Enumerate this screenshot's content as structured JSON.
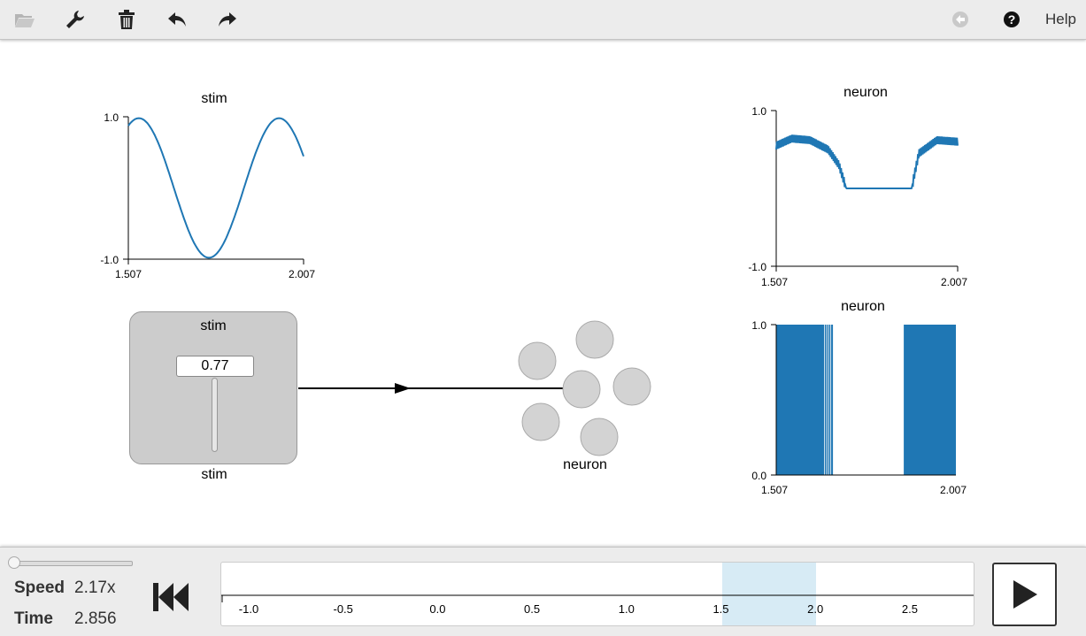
{
  "toolbar": {
    "icons": [
      "folder-open-icon",
      "wrench-icon",
      "trash-icon",
      "undo-icon",
      "redo-icon",
      "back-circle-icon",
      "help-circle-icon"
    ],
    "help_label": "Help"
  },
  "plots": {
    "stim": {
      "title": "stim",
      "y_max": "1.0",
      "y_min": "-1.0",
      "x_start": "1.507",
      "x_end": "2.007"
    },
    "neuron_value": {
      "title": "neuron",
      "y_max": "1.0",
      "y_min": "-1.0",
      "x_start": "1.507",
      "x_end": "2.007"
    },
    "neuron_raster": {
      "title": "neuron",
      "y_max": "1.0",
      "y_min": "0.0",
      "x_start": "1.507",
      "x_end": "2.007"
    }
  },
  "slider": {
    "title": "stim",
    "value": "0.77",
    "caption": "stim"
  },
  "ensemble": {
    "caption": "neuron"
  },
  "controls": {
    "speed_label": "Speed",
    "speed_value": "2.17x",
    "time_label": "Time",
    "time_value": "2.856",
    "timeline_ticks": [
      "-1.0",
      "-0.5",
      "0.0",
      "0.5",
      "1.0",
      "1.5",
      "2.0",
      "2.5"
    ]
  },
  "chart_data": [
    {
      "type": "line",
      "title": "stim",
      "x_range": [
        1.507,
        2.007
      ],
      "ylim": [
        -1.0,
        1.0
      ],
      "series": [
        {
          "values_note_free": true,
          "x": [
            1.507,
            1.55,
            1.6,
            1.65,
            1.7,
            1.75,
            1.8,
            1.85,
            1.9,
            1.95,
            2.007
          ],
          "y": [
            0.6,
            0.98,
            0.9,
            0.35,
            -0.4,
            -0.95,
            -0.8,
            -0.1,
            0.7,
            0.98,
            0.85
          ]
        }
      ]
    },
    {
      "type": "line",
      "title": "neuron",
      "x_range": [
        1.507,
        2.007
      ],
      "ylim": [
        -1.0,
        1.0
      ],
      "series": [
        {
          "x": [
            1.507,
            1.55,
            1.6,
            1.65,
            1.68,
            1.7,
            1.75,
            1.8,
            1.85,
            1.88,
            1.9,
            1.95,
            2.007
          ],
          "y": [
            0.55,
            0.64,
            0.62,
            0.5,
            0.3,
            0.0,
            0.0,
            0.0,
            0.0,
            0.0,
            0.45,
            0.62,
            0.6
          ]
        }
      ]
    },
    {
      "type": "bar",
      "title": "neuron",
      "x_range": [
        1.507,
        2.007
      ],
      "ylim": [
        0.0,
        1.0
      ],
      "spike_intervals": [
        [
          1.507,
          1.665
        ],
        [
          1.862,
          2.007
        ]
      ]
    }
  ]
}
